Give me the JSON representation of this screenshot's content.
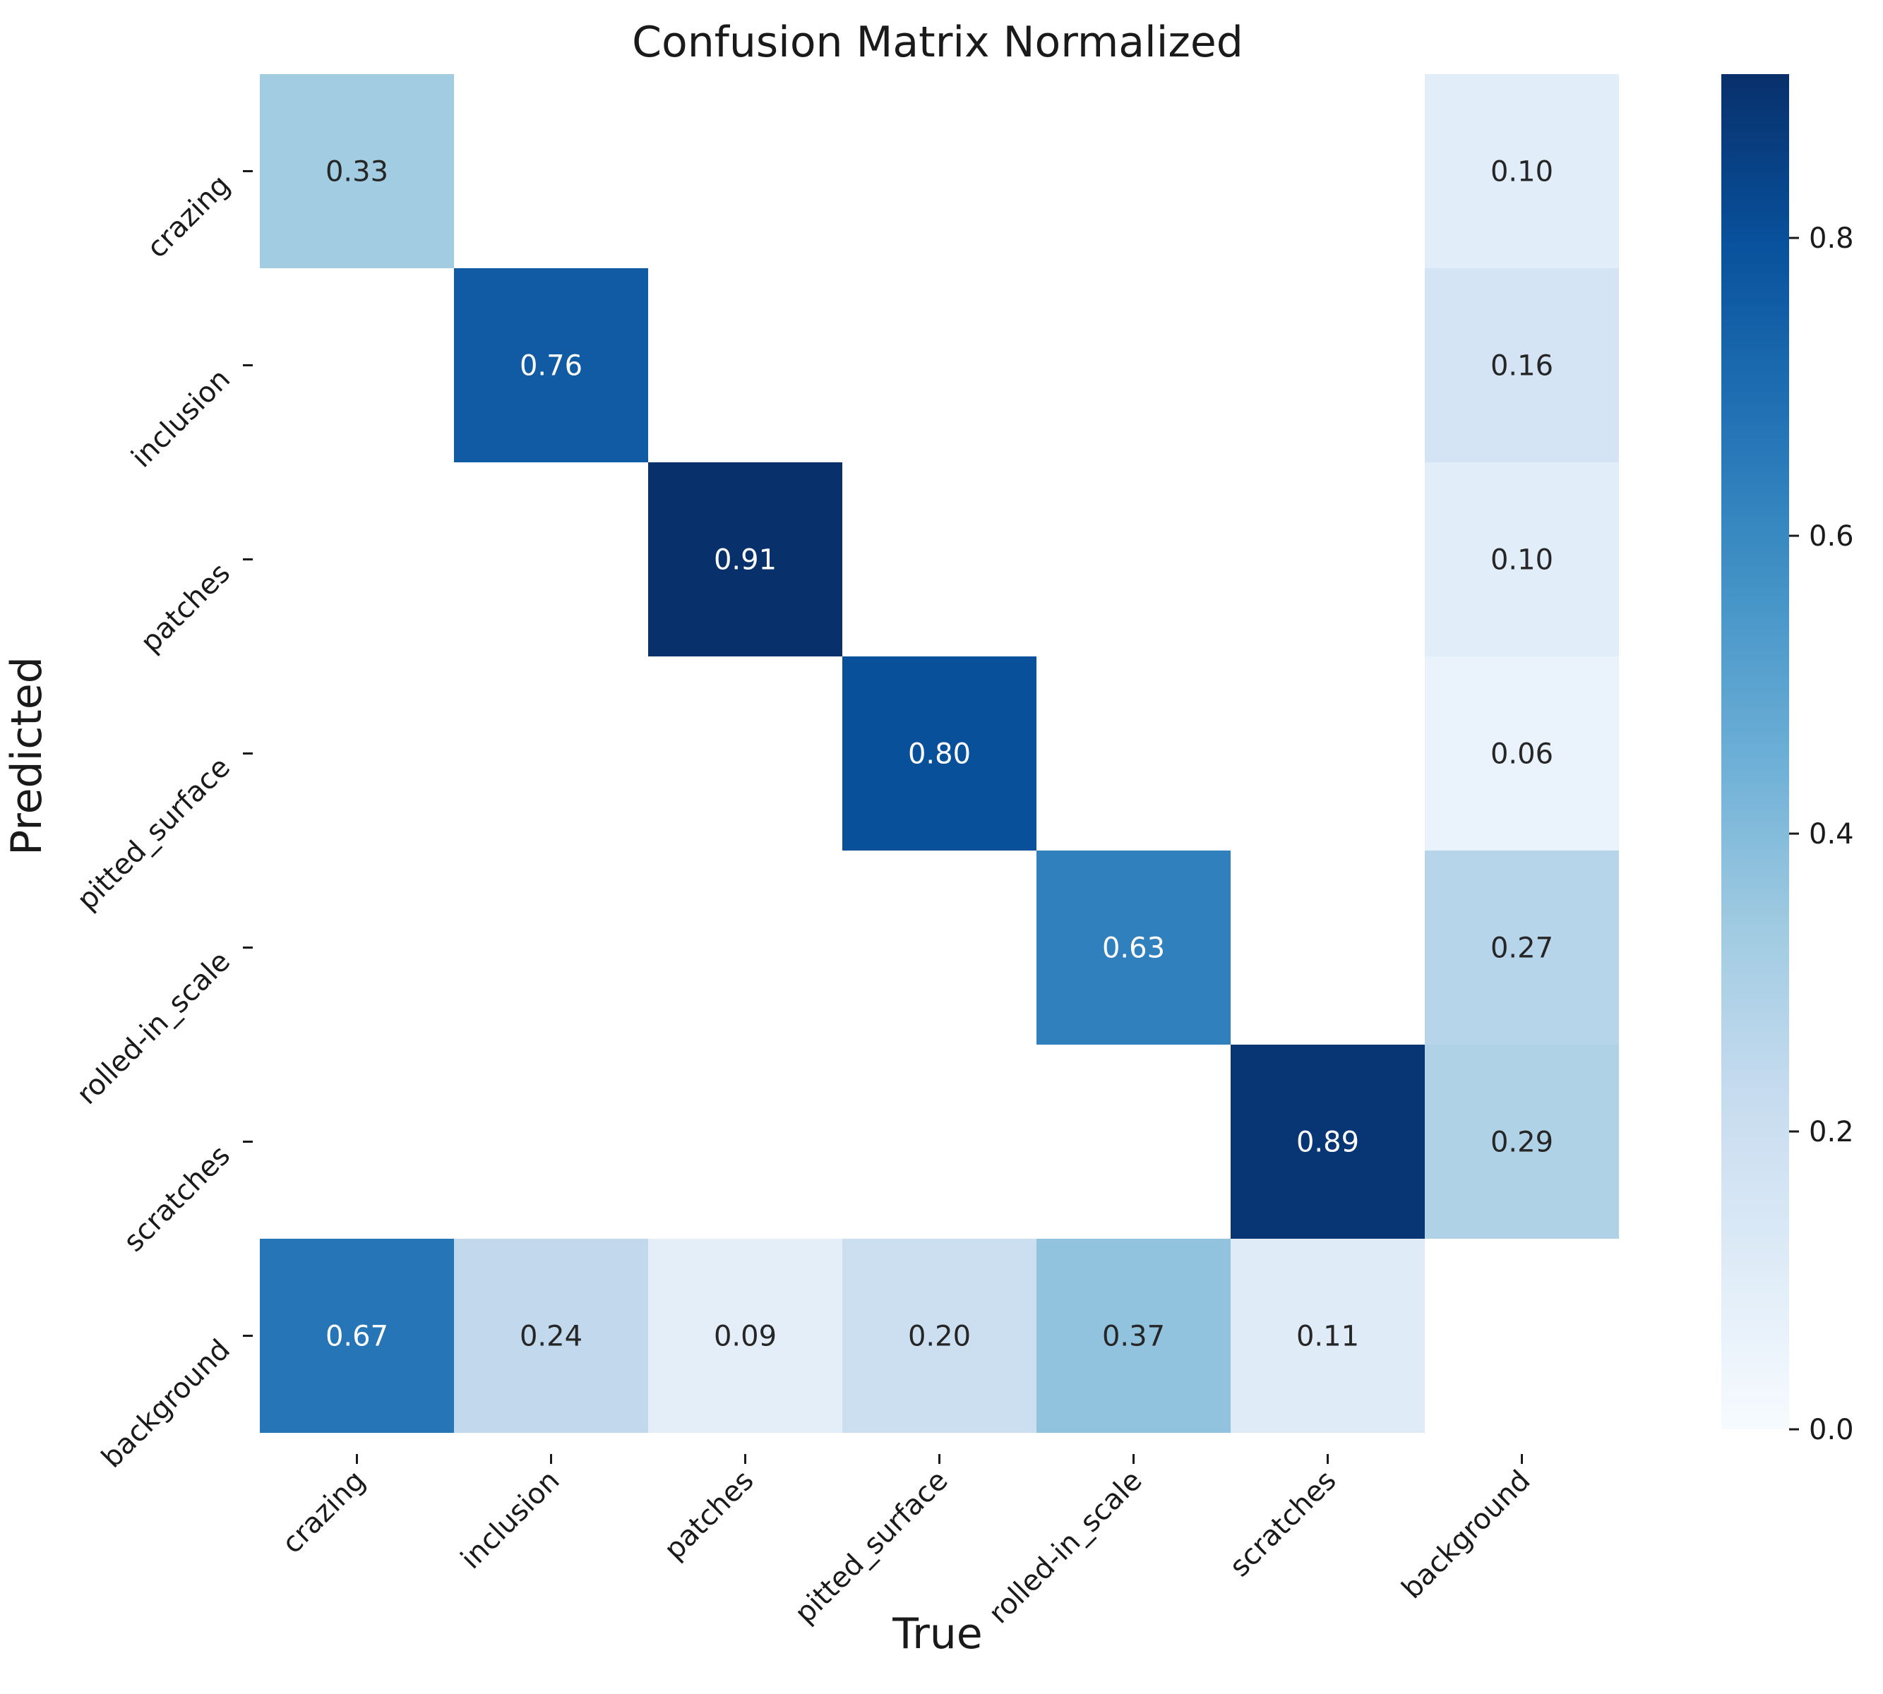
{
  "chart_data": {
    "type": "heatmap",
    "title": "Confusion Matrix Normalized",
    "xlabel": "True",
    "ylabel": "Predicted",
    "x_categories": [
      "crazing",
      "inclusion",
      "patches",
      "pitted_surface",
      "rolled-in_scale",
      "scratches",
      "background"
    ],
    "y_categories": [
      "crazing",
      "inclusion",
      "patches",
      "pitted_surface",
      "rolled-in_scale",
      "scratches",
      "background"
    ],
    "values": [
      [
        0.33,
        null,
        null,
        null,
        null,
        null,
        0.1
      ],
      [
        null,
        0.76,
        null,
        null,
        null,
        null,
        0.16
      ],
      [
        null,
        null,
        0.91,
        null,
        null,
        null,
        0.1
      ],
      [
        null,
        null,
        null,
        0.8,
        null,
        null,
        0.06
      ],
      [
        null,
        null,
        null,
        null,
        0.63,
        null,
        0.27
      ],
      [
        null,
        null,
        null,
        null,
        null,
        0.89,
        0.29
      ],
      [
        0.67,
        0.24,
        0.09,
        0.2,
        0.37,
        0.11,
        null
      ]
    ],
    "value_labels": [
      [
        "0.33",
        "",
        "",
        "",
        "",
        "",
        "0.10"
      ],
      [
        "",
        "0.76",
        "",
        "",
        "",
        "",
        "0.16"
      ],
      [
        "",
        "",
        "0.91",
        "",
        "",
        "",
        "0.10"
      ],
      [
        "",
        "",
        "",
        "0.80",
        "",
        "",
        "0.06"
      ],
      [
        "",
        "",
        "",
        "",
        "0.63",
        "",
        "0.27"
      ],
      [
        "",
        "",
        "",
        "",
        "",
        "0.89",
        "0.29"
      ],
      [
        "0.67",
        "0.24",
        "0.09",
        "0.20",
        "0.37",
        "0.11",
        ""
      ]
    ],
    "colorbar": {
      "range": [
        0.0,
        0.91
      ],
      "ticks": [
        0.0,
        0.2,
        0.4,
        0.6,
        0.8
      ],
      "tick_labels": [
        "0.0",
        "0.2",
        "0.4",
        "0.6",
        "0.8"
      ],
      "colormap": "Blues"
    }
  }
}
